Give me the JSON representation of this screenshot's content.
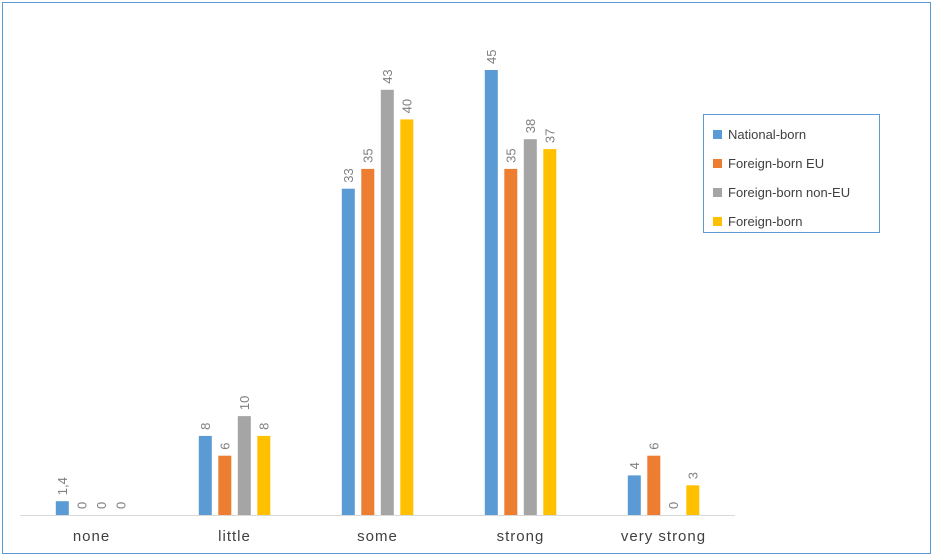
{
  "chart_data": {
    "type": "bar",
    "categories": [
      "none",
      "little",
      "some",
      "strong",
      "very strong"
    ],
    "series": [
      {
        "name": "National-born",
        "color": "#5b9bd5",
        "values": [
          1.4,
          8,
          33,
          45,
          4
        ],
        "labels": [
          "1,4",
          "8",
          "33",
          "45",
          "4"
        ]
      },
      {
        "name": "Foreign-born EU",
        "color": "#ed7d31",
        "values": [
          0,
          6,
          35,
          35,
          6
        ],
        "labels": [
          "0",
          "6",
          "35",
          "35",
          "6"
        ]
      },
      {
        "name": "Foreign-born non-EU",
        "color": "#a5a5a5",
        "values": [
          0,
          10,
          43,
          38,
          0
        ],
        "labels": [
          "0",
          "10",
          "43",
          "38",
          "0"
        ]
      },
      {
        "name": "Foreign-born",
        "color": "#ffc000",
        "values": [
          0,
          8,
          40,
          37,
          3
        ],
        "labels": [
          "0",
          "8",
          "40",
          "37",
          "3"
        ]
      }
    ],
    "ylim": [
      0,
      45
    ],
    "grid": false,
    "legend_position": "right",
    "title": "",
    "xlabel": "",
    "ylabel": ""
  }
}
